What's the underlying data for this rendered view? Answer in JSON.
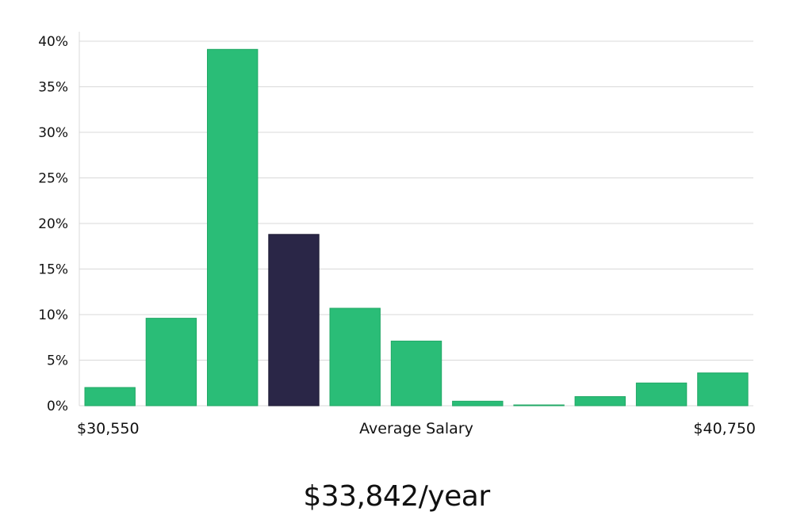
{
  "chart_data": {
    "type": "bar",
    "title": "",
    "xlabel": "Average Salary",
    "ylabel": "",
    "ylim": [
      0,
      40
    ],
    "yticks": [
      0,
      5,
      10,
      15,
      20,
      25,
      30,
      35,
      40
    ],
    "ytick_suffix": "%",
    "x_min_label": "$30,550",
    "x_max_label": "$40,750",
    "values": [
      2.0,
      9.6,
      39.1,
      18.8,
      10.7,
      7.1,
      0.5,
      0.05,
      1.0,
      2.5,
      3.6
    ],
    "highlight_index": 3,
    "colors": {
      "bar": "#2abd77",
      "bar_stroke": "#22a866",
      "highlight": "#2a2647",
      "grid": "#d9d9d9"
    },
    "grid": true
  },
  "caption": {
    "salary": "$33,842/year"
  }
}
